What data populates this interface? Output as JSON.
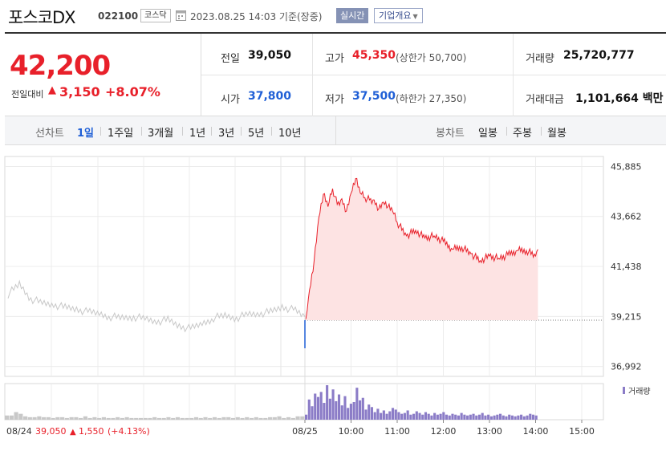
{
  "header": {
    "stock_name": "포스코DX",
    "stock_code": "022100",
    "market": "코스닥",
    "datetime": "2023.08.25 14:03 기준(장중)",
    "live_label": "실시간",
    "company_label": "기업개요"
  },
  "summary": {
    "current_price": "42,200",
    "change_label": "전일대비",
    "change_arrow": "▲",
    "change_value": "3,150",
    "change_percent": "+8.07%",
    "prev_close_label": "전일",
    "prev_close": "39,050",
    "open_label": "시가",
    "open": "37,800",
    "high_label": "고가",
    "high": "45,350",
    "upper_limit": "(상한가 50,700)",
    "low_label": "저가",
    "low": "37,500",
    "lower_limit": "(하한가 27,350)",
    "volume_label": "거래량",
    "volume": "25,720,777",
    "amount_label": "거래대금",
    "amount": "1,101,664 백만"
  },
  "toolbar": {
    "line_label": "선차트",
    "line_periods": [
      "1일",
      "1주일",
      "3개월",
      "1년",
      "3년",
      "5년",
      "10년"
    ],
    "active_period": "1일",
    "candle_label": "봉차트",
    "candle_periods": [
      "일봉",
      "주봉",
      "월봉"
    ]
  },
  "colors": {
    "up": "#e8202a",
    "down": "#1f5fd6",
    "prev_day_line": "#c8c8c8",
    "volume_today": "#8b7cc7",
    "area_fill": "#fde3e3"
  },
  "chart_data": {
    "type": "line",
    "y_ticks": [
      "45,885",
      "43,662",
      "41,438",
      "39,215",
      "36,992"
    ],
    "y_tick_values": [
      45885,
      43662,
      41438,
      39215,
      36992
    ],
    "ylim": [
      36550,
      46330
    ],
    "baseline": 39050,
    "x_ticks": [
      "10:00",
      "11:00",
      "12:00",
      "13:00",
      "14:00",
      "15:00"
    ],
    "prev_date_label": "08/24",
    "today_label": "08/25",
    "prev_summary": {
      "close": "39,050",
      "arrow": "▲",
      "change": "1,550",
      "percent": "(+4.13%)"
    },
    "volume_label": "거래량",
    "grid": true,
    "series": [
      {
        "role": "previous_day",
        "times": [
          9.0,
          9.25,
          9.5,
          9.75,
          10.0,
          10.25,
          10.5,
          10.75,
          11.0,
          11.25,
          11.5,
          11.75,
          12.0,
          12.25,
          12.5,
          12.75,
          13.0,
          13.25,
          13.5,
          13.75,
          14.0,
          14.25,
          14.5,
          14.75,
          15.0,
          15.25,
          15.5
        ],
        "values": [
          40200,
          40650,
          40000,
          39800,
          39750,
          39600,
          39550,
          39400,
          39350,
          39200,
          39150,
          39200,
          39100,
          39000,
          39050,
          38800,
          38650,
          38900,
          39150,
          39250,
          39150,
          39300,
          39350,
          39400,
          39650,
          39500,
          39200
        ]
      },
      {
        "role": "today",
        "times": [
          9.0,
          9.02,
          9.05,
          9.1,
          9.2,
          9.3,
          9.4,
          9.5,
          9.6,
          9.7,
          9.8,
          9.9,
          10.0,
          10.1,
          10.2,
          10.3,
          10.4,
          10.5,
          10.6,
          10.7,
          10.8,
          10.9,
          11.0,
          11.2,
          11.4,
          11.6,
          11.8,
          12.0,
          12.2,
          12.4,
          12.6,
          12.8,
          13.0,
          13.2,
          13.4,
          13.6,
          13.8,
          14.0,
          14.05
        ],
        "values": [
          37800,
          39100,
          39500,
          40400,
          41700,
          43600,
          44650,
          44100,
          44900,
          44200,
          44450,
          43900,
          44700,
          45350,
          44700,
          44500,
          44400,
          44400,
          44000,
          44300,
          44100,
          43900,
          43400,
          42800,
          43050,
          42700,
          42800,
          42550,
          42200,
          42300,
          42000,
          41700,
          41900,
          41800,
          41950,
          42150,
          42150,
          41900,
          42200
        ]
      }
    ],
    "volume": {
      "previous_day": [
        5,
        5,
        9,
        7,
        4,
        3,
        3,
        4,
        3,
        3,
        2,
        3,
        3,
        2,
        3,
        3,
        2,
        4,
        2,
        3,
        2,
        3,
        2,
        2,
        3,
        2,
        3,
        2,
        2,
        2,
        2,
        2,
        3,
        2,
        2,
        3,
        2,
        3,
        2,
        2,
        2,
        3,
        2,
        3,
        2,
        3,
        2,
        3,
        3,
        2,
        3,
        2,
        3,
        2,
        3,
        2,
        2,
        3,
        3,
        4,
        2,
        3,
        2,
        4,
        4
      ],
      "today": [
        6,
        24,
        16,
        31,
        27,
        33,
        20,
        41,
        25,
        36,
        22,
        30,
        17,
        28,
        14,
        19,
        21,
        38,
        23,
        26,
        12,
        18,
        15,
        9,
        13,
        8,
        11,
        7,
        10,
        14,
        12,
        9,
        7,
        8,
        11,
        6,
        7,
        10,
        8,
        6,
        9,
        7,
        5,
        8,
        6,
        7,
        9,
        6,
        5,
        7,
        6,
        5,
        8,
        6,
        5,
        6,
        7,
        5,
        6,
        8,
        5,
        6,
        4,
        5,
        6,
        7,
        5,
        4,
        6,
        5,
        4,
        5,
        6,
        4,
        5,
        7,
        6,
        5
      ]
    }
  }
}
